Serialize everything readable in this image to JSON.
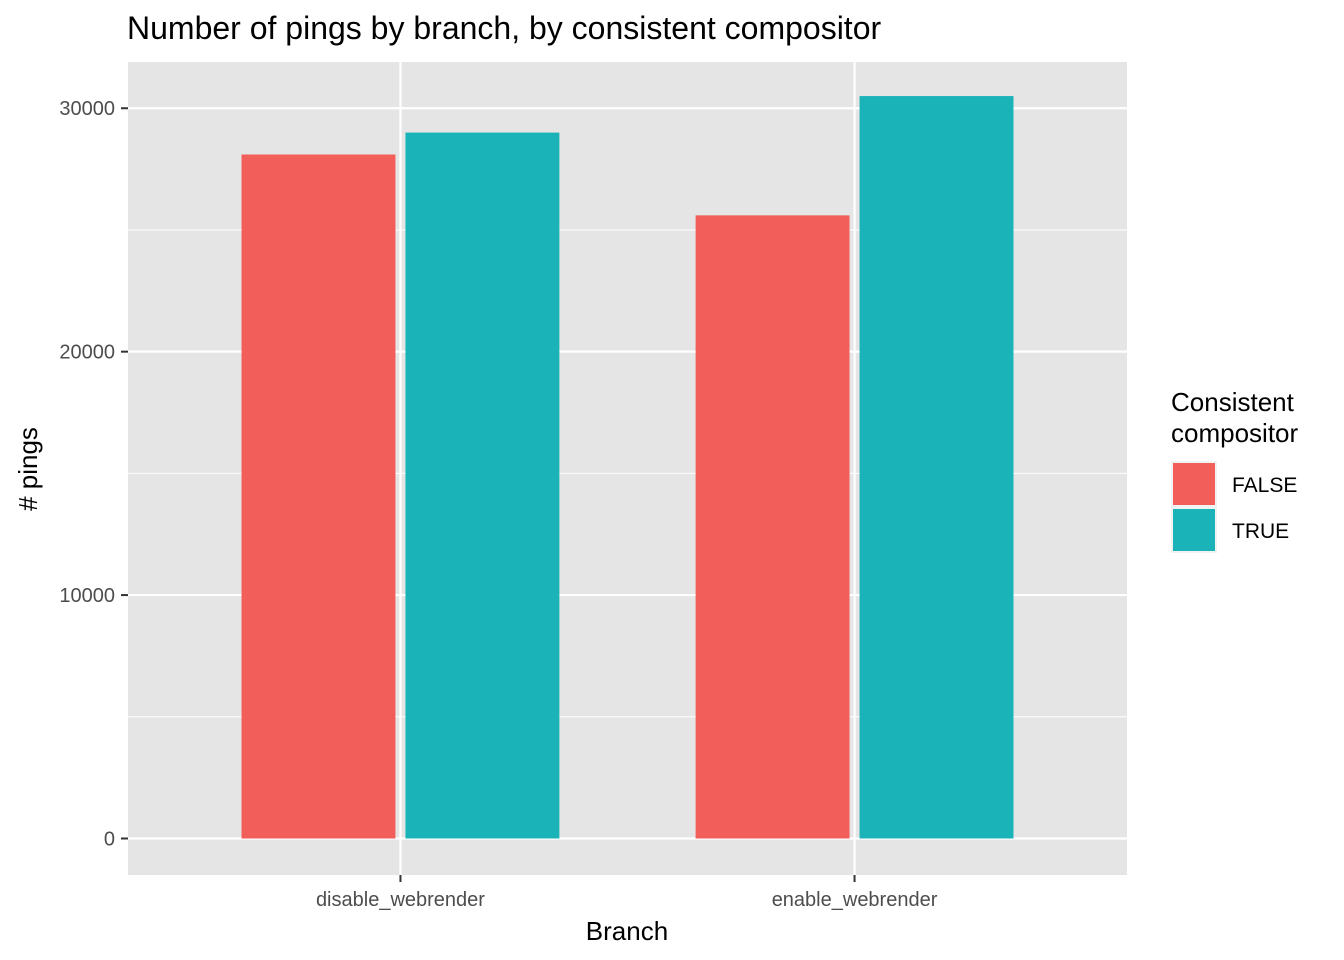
{
  "chart_data": {
    "type": "bar",
    "title": "Number of pings by branch, by consistent compositor",
    "xlabel": "Branch",
    "ylabel": "# pings",
    "categories": [
      "disable_webrender",
      "enable_webrender"
    ],
    "series": [
      {
        "name": "FALSE",
        "color": "#f25f5a",
        "values": [
          28100,
          25600
        ]
      },
      {
        "name": "TRUE",
        "color": "#19b3b8",
        "values": [
          29000,
          30500
        ]
      }
    ],
    "ylim": [
      -1500,
      31900
    ],
    "yticks": [
      0,
      10000,
      20000,
      30000
    ],
    "ytick_labels": [
      "0",
      "10000",
      "20000",
      "30000"
    ],
    "grid": true,
    "legend": {
      "title_line1": "Consistent",
      "title_line2": "compositor",
      "placement": "right"
    },
    "colors": {
      "panel_background": "#e5e5e5",
      "grid": "#ffffff",
      "tick_text": "#4d4d4d"
    }
  }
}
